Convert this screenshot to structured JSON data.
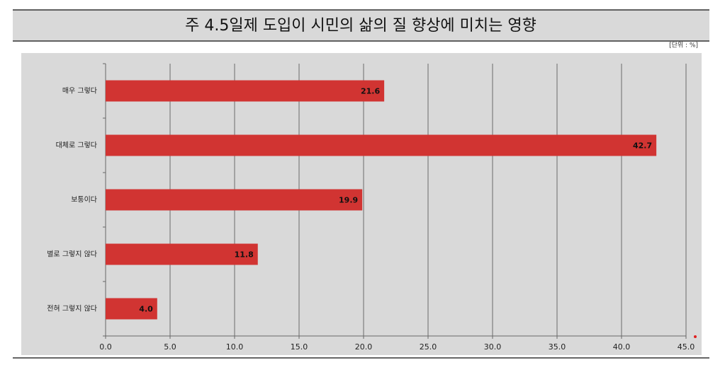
{
  "chart_data": {
    "type": "bar",
    "orientation": "horizontal",
    "title": "주 4.5일제 도입이 시민의 삶의 질 향상에 미치는 영향",
    "unit": "[단위 : %]",
    "categories": [
      "매우 그렇다",
      "대체로 그렇다",
      "보통이다",
      "별로 그렇지 않다",
      "전혀 그렇지 않다"
    ],
    "values": [
      21.6,
      42.7,
      19.9,
      11.8,
      4.0
    ],
    "value_labels": [
      "21.6",
      "42.7",
      "19.9",
      "11.8",
      "4.0"
    ],
    "color": "#d13432",
    "xlim": [
      0,
      45
    ],
    "xticks": [
      {
        "value": 0,
        "label": "0.0"
      },
      {
        "value": 5,
        "label": "5.0"
      },
      {
        "value": 10,
        "label": "10.0"
      },
      {
        "value": 15,
        "label": "15.0"
      },
      {
        "value": 20,
        "label": "20.0"
      },
      {
        "value": 25,
        "label": "25.0"
      },
      {
        "value": 30,
        "label": "30.0"
      },
      {
        "value": 35,
        "label": "35.0"
      },
      {
        "value": 40,
        "label": "40.0"
      },
      {
        "value": 45,
        "label": "45.0"
      }
    ],
    "grid": true
  }
}
